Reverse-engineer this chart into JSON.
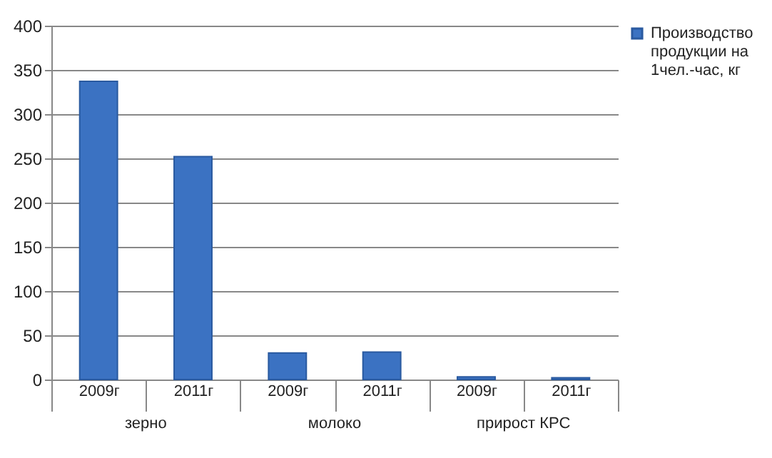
{
  "chart_data": {
    "type": "bar",
    "categories": [
      "2009г",
      "2011г",
      "2009г",
      "2011г",
      "2009г",
      "2011г"
    ],
    "series": [
      {
        "name": "Производство продукции на 1чел.-час, кг",
        "color": "#3b72c2",
        "values": [
          337,
          252,
          30,
          31,
          3,
          2
        ]
      }
    ],
    "annotations": [
      "зерно",
      "молоко",
      "прирост КРС"
    ],
    "ylim": [
      0,
      400
    ],
    "yticks": [
      0,
      50,
      100,
      150,
      200,
      250,
      300,
      350,
      400
    ],
    "grid": "y",
    "legend": "right"
  }
}
